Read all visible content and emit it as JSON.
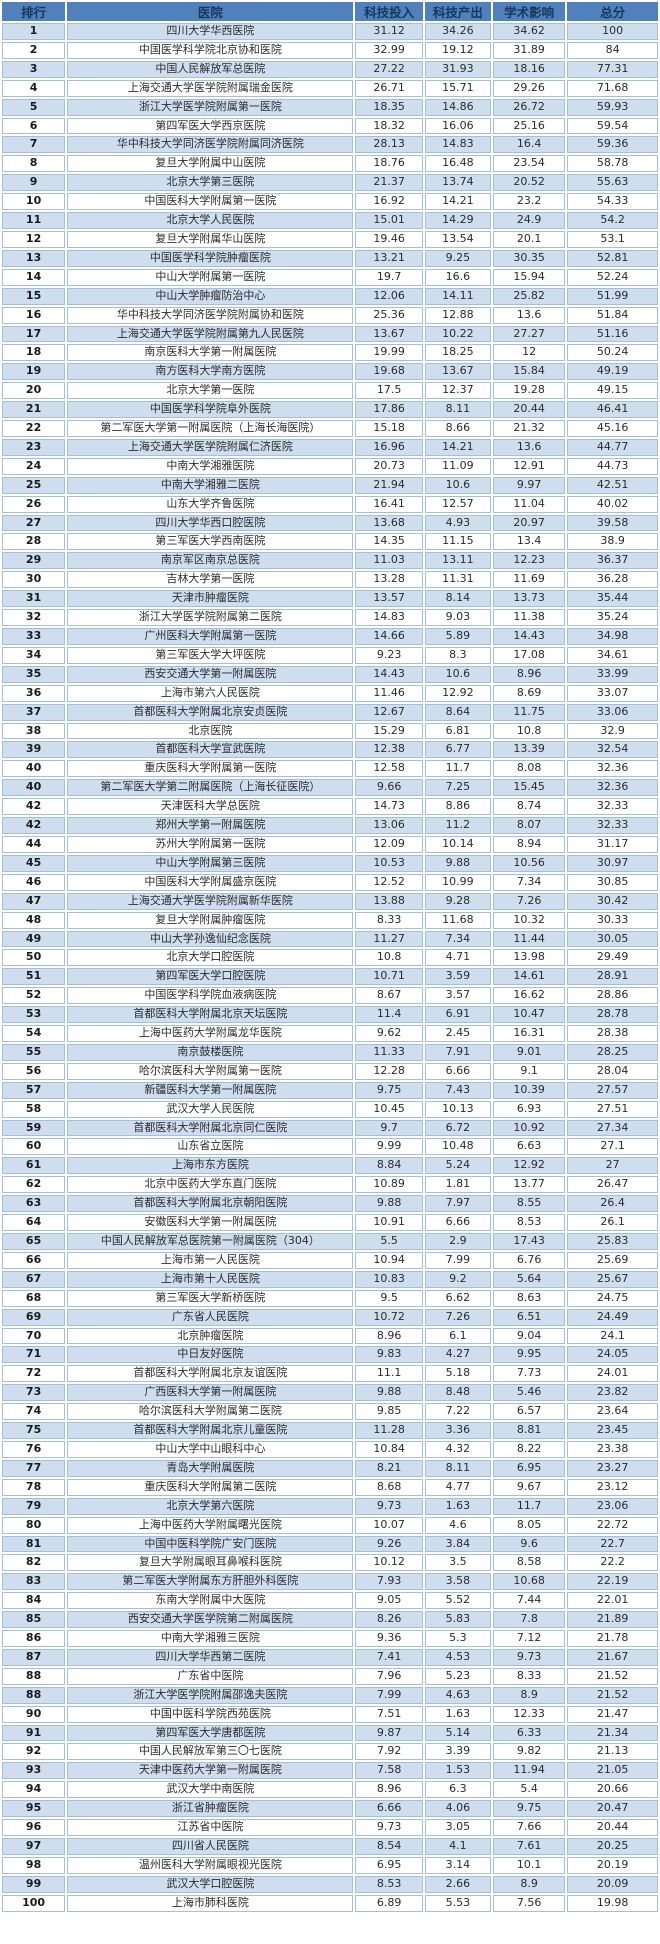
{
  "colors": {
    "header_bg": "#4f81bd",
    "header_text": "#17375e",
    "band_row_bg": "#cfdeef",
    "plain_row_bg": "#ffffff",
    "grid_border": "#a3bfdd",
    "data_text": "#2b2b2b"
  },
  "table": {
    "columns": [
      {
        "key": "rank",
        "label": "排行"
      },
      {
        "key": "name",
        "label": "医院"
      },
      {
        "key": "invest",
        "label": "科技投入"
      },
      {
        "key": "output",
        "label": "科技产出"
      },
      {
        "key": "impact",
        "label": "学术影响"
      },
      {
        "key": "total",
        "label": "总分"
      }
    ],
    "rows": [
      [
        "1",
        "四川大学华西医院",
        "31.12",
        "34.26",
        "34.62",
        "100"
      ],
      [
        "2",
        "中国医学科学院北京协和医院",
        "32.99",
        "19.12",
        "31.89",
        "84"
      ],
      [
        "3",
        "中国人民解放军总医院",
        "27.22",
        "31.93",
        "18.16",
        "77.31"
      ],
      [
        "4",
        "上海交通大学医学院附属瑞金医院",
        "26.71",
        "15.71",
        "29.26",
        "71.68"
      ],
      [
        "5",
        "浙江大学医学院附属第一医院",
        "18.35",
        "14.86",
        "26.72",
        "59.93"
      ],
      [
        "6",
        "第四军医大学西京医院",
        "18.32",
        "16.06",
        "25.16",
        "59.54"
      ],
      [
        "7",
        "华中科技大学同济医学院附属同济医院",
        "28.13",
        "14.83",
        "16.4",
        "59.36"
      ],
      [
        "8",
        "复旦大学附属中山医院",
        "18.76",
        "16.48",
        "23.54",
        "58.78"
      ],
      [
        "9",
        "北京大学第三医院",
        "21.37",
        "13.74",
        "20.52",
        "55.63"
      ],
      [
        "10",
        "中国医科大学附属第一医院",
        "16.92",
        "14.21",
        "23.2",
        "54.33"
      ],
      [
        "11",
        "北京大学人民医院",
        "15.01",
        "14.29",
        "24.9",
        "54.2"
      ],
      [
        "12",
        "复旦大学附属华山医院",
        "19.46",
        "13.54",
        "20.1",
        "53.1"
      ],
      [
        "13",
        "中国医学科学院肿瘤医院",
        "13.21",
        "9.25",
        "30.35",
        "52.81"
      ],
      [
        "14",
        "中山大学附属第一医院",
        "19.7",
        "16.6",
        "15.94",
        "52.24"
      ],
      [
        "15",
        "中山大学肿瘤防治中心",
        "12.06",
        "14.11",
        "25.82",
        "51.99"
      ],
      [
        "16",
        "华中科技大学同济医学院附属协和医院",
        "25.36",
        "12.88",
        "13.6",
        "51.84"
      ],
      [
        "17",
        "上海交通大学医学院附属第九人民医院",
        "13.67",
        "10.22",
        "27.27",
        "51.16"
      ],
      [
        "18",
        "南京医科大学第一附属医院",
        "19.99",
        "18.25",
        "12",
        "50.24"
      ],
      [
        "19",
        "南方医科大学南方医院",
        "19.68",
        "13.67",
        "15.84",
        "49.19"
      ],
      [
        "20",
        "北京大学第一医院",
        "17.5",
        "12.37",
        "19.28",
        "49.15"
      ],
      [
        "21",
        "中国医学科学院阜外医院",
        "17.86",
        "8.11",
        "20.44",
        "46.41"
      ],
      [
        "22",
        "第二军医大学第一附属医院（上海长海医院）",
        "15.18",
        "8.66",
        "21.32",
        "45.16"
      ],
      [
        "23",
        "上海交通大学医学院附属仁济医院",
        "16.96",
        "14.21",
        "13.6",
        "44.77"
      ],
      [
        "24",
        "中南大学湘雅医院",
        "20.73",
        "11.09",
        "12.91",
        "44.73"
      ],
      [
        "25",
        "中南大学湘雅二医院",
        "21.94",
        "10.6",
        "9.97",
        "42.51"
      ],
      [
        "26",
        "山东大学齐鲁医院",
        "16.41",
        "12.57",
        "11.04",
        "40.02"
      ],
      [
        "27",
        "四川大学华西口腔医院",
        "13.68",
        "4.93",
        "20.97",
        "39.58"
      ],
      [
        "28",
        "第三军医大学西南医院",
        "14.35",
        "11.15",
        "13.4",
        "38.9"
      ],
      [
        "29",
        "南京军区南京总医院",
        "11.03",
        "13.11",
        "12.23",
        "36.37"
      ],
      [
        "30",
        "吉林大学第一医院",
        "13.28",
        "11.31",
        "11.69",
        "36.28"
      ],
      [
        "31",
        "天津市肿瘤医院",
        "13.57",
        "8.14",
        "13.73",
        "35.44"
      ],
      [
        "32",
        "浙江大学医学院附属第二医院",
        "14.83",
        "9.03",
        "11.38",
        "35.24"
      ],
      [
        "33",
        "广州医科大学附属第一医院",
        "14.66",
        "5.89",
        "14.43",
        "34.98"
      ],
      [
        "34",
        "第三军医大学大坪医院",
        "9.23",
        "8.3",
        "17.08",
        "34.61"
      ],
      [
        "35",
        "西安交通大学第一附属医院",
        "14.43",
        "10.6",
        "8.96",
        "33.99"
      ],
      [
        "36",
        "上海市第六人民医院",
        "11.46",
        "12.92",
        "8.69",
        "33.07"
      ],
      [
        "37",
        "首都医科大学附属北京安贞医院",
        "12.67",
        "8.64",
        "11.75",
        "33.06"
      ],
      [
        "38",
        "北京医院",
        "15.29",
        "6.81",
        "10.8",
        "32.9"
      ],
      [
        "39",
        "首都医科大学宣武医院",
        "12.38",
        "6.77",
        "13.39",
        "32.54"
      ],
      [
        "40",
        "重庆医科大学附属第一医院",
        "12.58",
        "11.7",
        "8.08",
        "32.36"
      ],
      [
        "40",
        "第二军医大学第二附属医院（上海长征医院）",
        "9.66",
        "7.25",
        "15.45",
        "32.36"
      ],
      [
        "42",
        "天津医科大学总医院",
        "14.73",
        "8.86",
        "8.74",
        "32.33"
      ],
      [
        "42",
        "郑州大学第一附属医院",
        "13.06",
        "11.2",
        "8.07",
        "32.33"
      ],
      [
        "44",
        "苏州大学附属第一医院",
        "12.09",
        "10.14",
        "8.94",
        "31.17"
      ],
      [
        "45",
        "中山大学附属第三医院",
        "10.53",
        "9.88",
        "10.56",
        "30.97"
      ],
      [
        "46",
        "中国医科大学附属盛京医院",
        "12.52",
        "10.99",
        "7.34",
        "30.85"
      ],
      [
        "47",
        "上海交通大学医学院附属新华医院",
        "13.88",
        "9.28",
        "7.26",
        "30.42"
      ],
      [
        "48",
        "复旦大学附属肿瘤医院",
        "8.33",
        "11.68",
        "10.32",
        "30.33"
      ],
      [
        "49",
        "中山大学孙逸仙纪念医院",
        "11.27",
        "7.34",
        "11.44",
        "30.05"
      ],
      [
        "50",
        "北京大学口腔医院",
        "10.8",
        "4.71",
        "13.98",
        "29.49"
      ],
      [
        "51",
        "第四军医大学口腔医院",
        "10.71",
        "3.59",
        "14.61",
        "28.91"
      ],
      [
        "52",
        "中国医学科学院血液病医院",
        "8.67",
        "3.57",
        "16.62",
        "28.86"
      ],
      [
        "53",
        "首都医科大学附属北京天坛医院",
        "11.4",
        "6.91",
        "10.47",
        "28.78"
      ],
      [
        "54",
        "上海中医药大学附属龙华医院",
        "9.62",
        "2.45",
        "16.31",
        "28.38"
      ],
      [
        "55",
        "南京鼓楼医院",
        "11.33",
        "7.91",
        "9.01",
        "28.25"
      ],
      [
        "56",
        "哈尔滨医科大学附属第一医院",
        "12.28",
        "6.66",
        "9.1",
        "28.04"
      ],
      [
        "57",
        "新疆医科大学第一附属医院",
        "9.75",
        "7.43",
        "10.39",
        "27.57"
      ],
      [
        "58",
        "武汉大学人民医院",
        "10.45",
        "10.13",
        "6.93",
        "27.51"
      ],
      [
        "59",
        "首都医科大学附属北京同仁医院",
        "9.7",
        "6.72",
        "10.92",
        "27.34"
      ],
      [
        "60",
        "山东省立医院",
        "9.99",
        "10.48",
        "6.63",
        "27.1"
      ],
      [
        "61",
        "上海市东方医院",
        "8.84",
        "5.24",
        "12.92",
        "27"
      ],
      [
        "62",
        "北京中医药大学东直门医院",
        "10.89",
        "1.81",
        "13.77",
        "26.47"
      ],
      [
        "63",
        "首都医科大学附属北京朝阳医院",
        "9.88",
        "7.97",
        "8.55",
        "26.4"
      ],
      [
        "64",
        "安徽医科大学第一附属医院",
        "10.91",
        "6.66",
        "8.53",
        "26.1"
      ],
      [
        "65",
        "中国人民解放军总医院第一附属医院（304）",
        "5.5",
        "2.9",
        "17.43",
        "25.83"
      ],
      [
        "66",
        "上海市第一人民医院",
        "10.94",
        "7.99",
        "6.76",
        "25.69"
      ],
      [
        "67",
        "上海市第十人民医院",
        "10.83",
        "9.2",
        "5.64",
        "25.67"
      ],
      [
        "68",
        "第三军医大学新桥医院",
        "9.5",
        "6.62",
        "8.63",
        "24.75"
      ],
      [
        "69",
        "广东省人民医院",
        "10.72",
        "7.26",
        "6.51",
        "24.49"
      ],
      [
        "70",
        "北京肿瘤医院",
        "8.96",
        "6.1",
        "9.04",
        "24.1"
      ],
      [
        "71",
        "中日友好医院",
        "9.83",
        "4.27",
        "9.95",
        "24.05"
      ],
      [
        "72",
        "首都医科大学附属北京友谊医院",
        "11.1",
        "5.18",
        "7.73",
        "24.01"
      ],
      [
        "73",
        "广西医科大学第一附属医院",
        "9.88",
        "8.48",
        "5.46",
        "23.82"
      ],
      [
        "74",
        "哈尔滨医科大学附属第二医院",
        "9.85",
        "7.22",
        "6.57",
        "23.64"
      ],
      [
        "75",
        "首都医科大学附属北京儿童医院",
        "11.28",
        "3.36",
        "8.81",
        "23.45"
      ],
      [
        "76",
        "中山大学中山眼科中心",
        "10.84",
        "4.32",
        "8.22",
        "23.38"
      ],
      [
        "77",
        "青岛大学附属医院",
        "8.21",
        "8.11",
        "6.95",
        "23.27"
      ],
      [
        "78",
        "重庆医科大学附属第二医院",
        "8.68",
        "4.77",
        "9.67",
        "23.12"
      ],
      [
        "79",
        "北京大学第六医院",
        "9.73",
        "1.63",
        "11.7",
        "23.06"
      ],
      [
        "80",
        "上海中医药大学附属曙光医院",
        "10.07",
        "4.6",
        "8.05",
        "22.72"
      ],
      [
        "81",
        "中国中医科学院广安门医院",
        "9.26",
        "3.84",
        "9.6",
        "22.7"
      ],
      [
        "82",
        "复旦大学附属眼耳鼻喉科医院",
        "10.12",
        "3.5",
        "8.58",
        "22.2"
      ],
      [
        "83",
        "第二军医大学附属东方肝胆外科医院",
        "7.93",
        "3.58",
        "10.68",
        "22.19"
      ],
      [
        "84",
        "东南大学附属中大医院",
        "9.05",
        "5.52",
        "7.44",
        "22.01"
      ],
      [
        "85",
        "西安交通大学医学院第二附属医院",
        "8.26",
        "5.83",
        "7.8",
        "21.89"
      ],
      [
        "86",
        "中南大学湘雅三医院",
        "9.36",
        "5.3",
        "7.12",
        "21.78"
      ],
      [
        "87",
        "四川大学华西第二医院",
        "7.41",
        "4.53",
        "9.73",
        "21.67"
      ],
      [
        "88",
        "广东省中医院",
        "7.96",
        "5.23",
        "8.33",
        "21.52"
      ],
      [
        "88",
        "浙江大学医学院附属邵逸夫医院",
        "7.99",
        "4.63",
        "8.9",
        "21.52"
      ],
      [
        "90",
        "中国中医科学院西苑医院",
        "7.51",
        "1.63",
        "12.33",
        "21.47"
      ],
      [
        "91",
        "第四军医大学唐都医院",
        "9.87",
        "5.14",
        "6.33",
        "21.34"
      ],
      [
        "92",
        "中国人民解放军第三〇七医院",
        "7.92",
        "3.39",
        "9.82",
        "21.13"
      ],
      [
        "93",
        "天津中医药大学第一附属医院",
        "7.58",
        "1.53",
        "11.94",
        "21.05"
      ],
      [
        "94",
        "武汉大学中南医院",
        "8.96",
        "6.3",
        "5.4",
        "20.66"
      ],
      [
        "95",
        "浙江省肿瘤医院",
        "6.66",
        "4.06",
        "9.75",
        "20.47"
      ],
      [
        "96",
        "江苏省中医院",
        "9.73",
        "3.05",
        "7.66",
        "20.44"
      ],
      [
        "97",
        "四川省人民医院",
        "8.54",
        "4.1",
        "7.61",
        "20.25"
      ],
      [
        "98",
        "温州医科大学附属眼视光医院",
        "6.95",
        "3.14",
        "10.1",
        "20.19"
      ],
      [
        "99",
        "武汉大学口腔医院",
        "8.53",
        "2.66",
        "8.9",
        "20.09"
      ],
      [
        "100",
        "上海市肺科医院",
        "6.89",
        "5.53",
        "7.56",
        "19.98"
      ]
    ]
  }
}
